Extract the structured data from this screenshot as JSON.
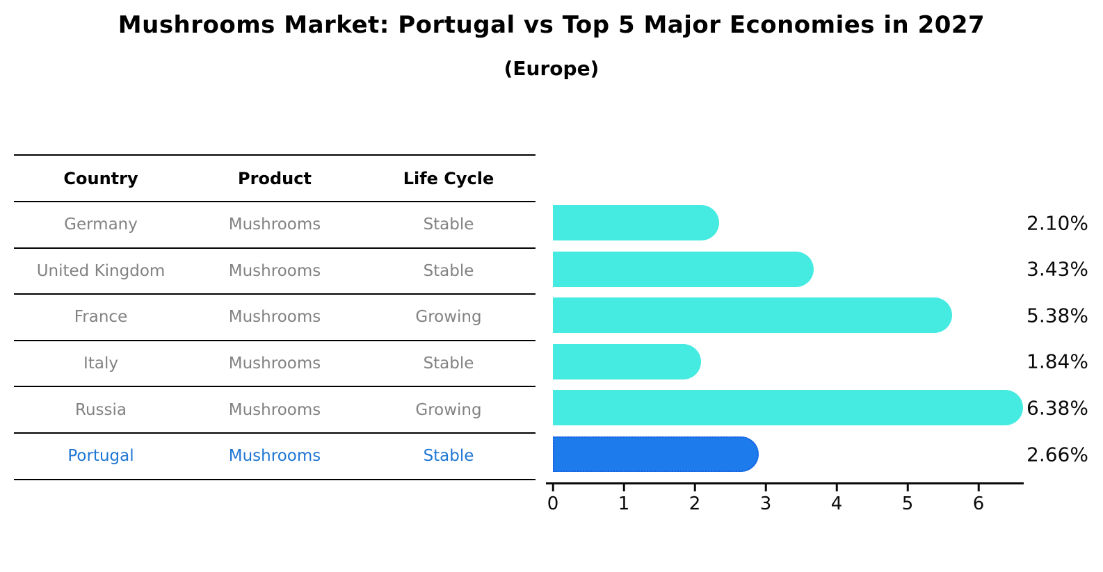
{
  "title": "Mushrooms Market: Portugal vs Top 5 Major Economies in 2027",
  "subtitle": "(Europe)",
  "table": {
    "headers": [
      "Country",
      "Product",
      "Life Cycle"
    ],
    "rows": [
      {
        "country": "Germany",
        "product": "Mushrooms",
        "life_cycle": "Stable",
        "highlighted": false
      },
      {
        "country": "United Kingdom",
        "product": "Mushrooms",
        "life_cycle": "Stable",
        "highlighted": false
      },
      {
        "country": "France",
        "product": "Mushrooms",
        "life_cycle": "Growing",
        "highlighted": false
      },
      {
        "country": "Italy",
        "product": "Mushrooms",
        "life_cycle": "Stable",
        "highlighted": false
      },
      {
        "country": "Russia",
        "product": "Mushrooms",
        "life_cycle": "Growing",
        "highlighted": false
      },
      {
        "country": "Portugal",
        "product": "Mushrooms",
        "life_cycle": "Stable",
        "highlighted": true
      }
    ]
  },
  "chart_data": {
    "type": "bar",
    "orientation": "horizontal",
    "title": "Mushrooms Market: Portugal vs Top 5 Major Economies in 2027",
    "subtitle": "(Europe)",
    "categories": [
      "Germany",
      "United Kingdom",
      "France",
      "Italy",
      "Russia",
      "Portugal"
    ],
    "values": [
      2.1,
      3.43,
      5.38,
      1.84,
      6.38,
      2.66
    ],
    "value_labels": [
      "2.10%",
      "3.43%",
      "5.38%",
      "1.84%",
      "6.38%",
      "2.66%"
    ],
    "x_ticks": [
      0,
      1,
      2,
      3,
      4,
      5,
      6
    ],
    "xlim": [
      0,
      6.7
    ],
    "grid": false,
    "legend": "none",
    "highlight_index": 5
  },
  "colors": {
    "bar_color": "#45EAE1",
    "highlight_bar_color": "#1E7BEB",
    "highlight_border_color": "#1560E0",
    "highlight_text": "#1f77d4",
    "row_text": "#828282",
    "label_text": "#0a0a0a"
  }
}
